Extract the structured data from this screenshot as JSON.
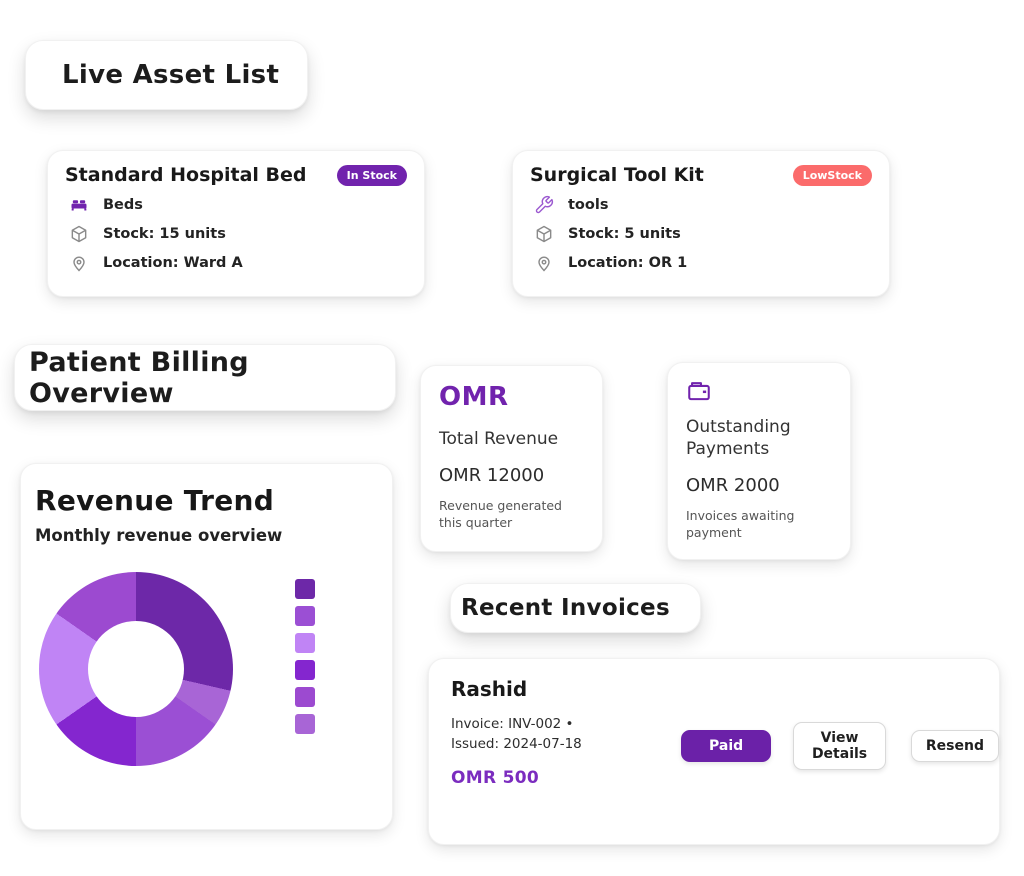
{
  "colors": {
    "primary_purple": "#7123ad",
    "paid_button_purple": "#6b21a8",
    "coral": "#fb6b6b",
    "amount_purple": "#7b2cbf"
  },
  "asset_section": {
    "title": "Live Asset List",
    "assets": [
      {
        "name": "Standard Hospital Bed",
        "badge": "In Stock",
        "badge_color": "#7123ad",
        "category": "Beds",
        "category_icon": "bed-icon",
        "stock": "Stock: 15 units",
        "location": "Location: Ward A"
      },
      {
        "name": "Surgical Tool Kit",
        "badge": "LowStock",
        "badge_color": "#fb6b6b",
        "category": "tools",
        "category_icon": "wrench-icon",
        "stock": "Stock: 5 units",
        "location": "Location: OR 1"
      }
    ]
  },
  "billing_section": {
    "title": "Patient Billing Overview",
    "stats": [
      {
        "currency": "OMR",
        "label": "Total Revenue",
        "value": "OMR 12000",
        "description": "Revenue generated this quarter"
      },
      {
        "icon": "wallet-icon",
        "label": "Outstanding Payments",
        "value": "OMR 2000",
        "description": "Invoices awaiting payment"
      }
    ]
  },
  "chart_data": {
    "type": "pie",
    "donut": true,
    "title": "Revenue Trend",
    "subtitle": "Monthly revenue overview",
    "legend_position": "right",
    "legend_text_labels": [],
    "legend_swatches": [
      "#6d28a8",
      "#9b4fd4",
      "#c084f5",
      "#8426cf",
      "#9c4ad0",
      "#a865d6"
    ],
    "segments": [
      {
        "name": "segment-1",
        "color": "#6d28a8",
        "percent": 28.6
      },
      {
        "name": "segment-2",
        "color": "#a865d6",
        "percent": 6.1
      },
      {
        "name": "segment-3",
        "color": "#9b4fd4",
        "percent": 15.3
      },
      {
        "name": "segment-4",
        "color": "#8426cf",
        "percent": 15.3
      },
      {
        "name": "segment-5",
        "color": "#c084f5",
        "percent": 19.4
      },
      {
        "name": "segment-6",
        "color": "#9c4ad0",
        "percent": 15.3
      }
    ]
  },
  "invoice_section": {
    "title": "Recent Invoices",
    "invoices": [
      {
        "patient": "Rashid",
        "meta_line1": "Invoice: INV-002 •",
        "meta_line2": "Issued: 2024-07-18",
        "amount": "OMR 500",
        "status_label": "Paid",
        "view_details_label": "View Details",
        "resend_label": "Resend"
      }
    ]
  }
}
